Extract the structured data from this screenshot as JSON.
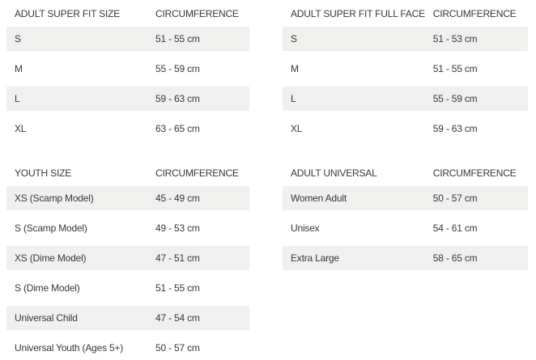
{
  "page": {
    "background": "#ffffff",
    "row_shade_color": "#f0f0ef",
    "text_color": "#383838"
  },
  "tables": [
    {
      "title": "ADULT SUPER FIT SIZE",
      "circumference_header": "CIRCUMFERENCE",
      "rows": [
        {
          "size": "S",
          "circumference": "51 - 55 cm"
        },
        {
          "size": "M",
          "circumference": "55 - 59 cm"
        },
        {
          "size": "L",
          "circumference": "59 - 63 cm"
        },
        {
          "size": "XL",
          "circumference": "63 - 65 cm"
        }
      ]
    },
    {
      "title": "ADULT SUPER FIT FULL FACE",
      "circumference_header": "CIRCUMFERENCE",
      "rows": [
        {
          "size": "S",
          "circumference": "51 - 53 cm"
        },
        {
          "size": "M",
          "circumference": "51 - 55 cm"
        },
        {
          "size": "L",
          "circumference": "55 - 59 cm"
        },
        {
          "size": "XL",
          "circumference": "59 - 63 cm"
        }
      ]
    },
    {
      "title": "YOUTH SIZE",
      "circumference_header": "CIRCUMFERENCE",
      "rows": [
        {
          "size": "XS (Scamp Model)",
          "circumference": "45 - 49 cm"
        },
        {
          "size": "S (Scamp Model)",
          "circumference": "49 - 53 cm"
        },
        {
          "size": "XS (Dime Model)",
          "circumference": "47 - 51 cm"
        },
        {
          "size": "S (Dime Model)",
          "circumference": "51 - 55 cm"
        },
        {
          "size": "Universal Child",
          "circumference": "47 - 54 cm"
        },
        {
          "size": "Universal Youth (Ages 5+)",
          "circumference": "50 - 57 cm"
        }
      ]
    },
    {
      "title": "ADULT UNIVERSAL",
      "circumference_header": "CIRCUMFERENCE",
      "rows": [
        {
          "size": "Women Adult",
          "circumference": "50 - 57 cm"
        },
        {
          "size": "Unisex",
          "circumference": "54 - 61 cm"
        },
        {
          "size": "Extra Large",
          "circumference": "58 - 65 cm"
        }
      ]
    }
  ]
}
